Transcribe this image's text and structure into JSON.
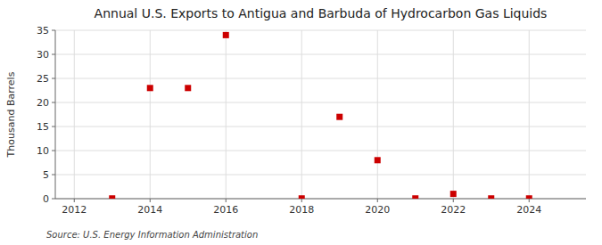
{
  "chart_data": {
    "type": "scatter",
    "title": "Annual U.S. Exports to Antigua and Barbuda of Hydrocarbon Gas Liquids",
    "ylabel": "Thousand Barrels",
    "source": "Source: U.S. Energy Information Administration",
    "x": [
      2013,
      2014,
      2015,
      2016,
      2018,
      2019,
      2020,
      2021,
      2022,
      2023,
      2024
    ],
    "values": [
      0.05,
      23,
      23,
      34,
      0.05,
      17,
      8,
      0.05,
      1,
      0.05,
      0.05
    ],
    "xlim": [
      2011.5,
      2025.5
    ],
    "ylim": [
      0,
      35
    ],
    "xticks": [
      2012,
      2014,
      2016,
      2018,
      2020,
      2022,
      2024
    ],
    "yticks": [
      0,
      5,
      10,
      15,
      20,
      25,
      30,
      35
    ],
    "grid": true,
    "color": "#cc0000",
    "marker": "square"
  }
}
